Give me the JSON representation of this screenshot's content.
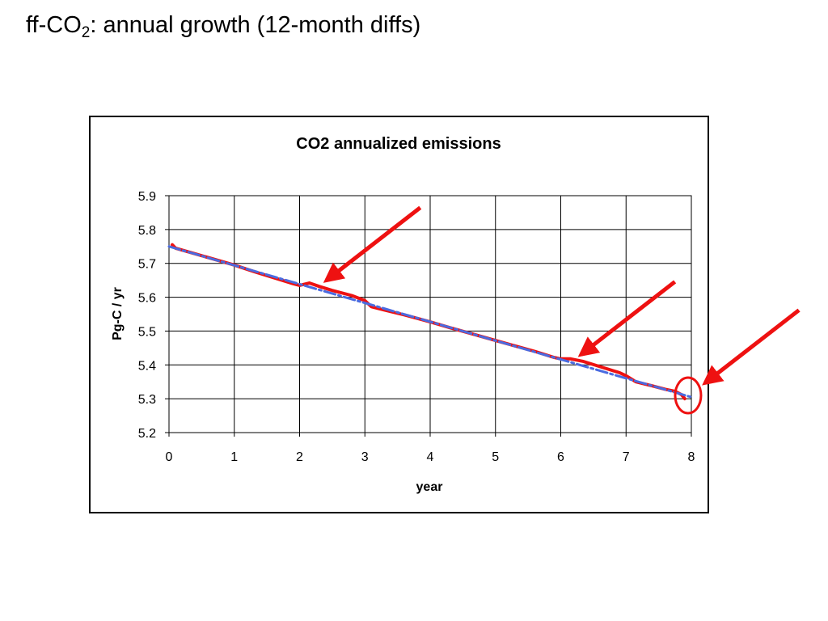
{
  "slide": {
    "title_prefix": "ff-CO",
    "title_subscript": "2",
    "title_suffix": ":  annual growth (12-month diffs)"
  },
  "chart_data": {
    "type": "line",
    "title": "CO2 annualized emissions",
    "xlabel": "year",
    "ylabel": "Pg-C / yr",
    "xlim": [
      0,
      8
    ],
    "ylim": [
      5.2,
      5.9
    ],
    "xticks": [
      "0",
      "1",
      "2",
      "3",
      "4",
      "5",
      "6",
      "7",
      "8"
    ],
    "yticks": [
      "5.9",
      "5.8",
      "5.7",
      "5.6",
      "5.5",
      "5.4",
      "5.3",
      "5.2"
    ],
    "grid": true,
    "legend": "none",
    "series": [
      {
        "color": "#ee1111",
        "style": "solid",
        "x": [
          0.05,
          0.1,
          1.0,
          1.3,
          1.6,
          1.9,
          2.0,
          2.15,
          2.3,
          2.5,
          2.8,
          3.0,
          3.1,
          3.3,
          3.6,
          4.0,
          4.3,
          4.6,
          5.0,
          5.3,
          5.6,
          5.9,
          6.0,
          6.15,
          6.35,
          6.6,
          6.9,
          7.0,
          7.15,
          7.4,
          7.6,
          7.75,
          7.85,
          7.9
        ],
        "y": [
          5.755,
          5.745,
          5.695,
          5.676,
          5.658,
          5.64,
          5.635,
          5.642,
          5.632,
          5.62,
          5.605,
          5.59,
          5.572,
          5.562,
          5.548,
          5.527,
          5.51,
          5.494,
          5.472,
          5.456,
          5.44,
          5.422,
          5.418,
          5.418,
          5.41,
          5.395,
          5.377,
          5.368,
          5.35,
          5.338,
          5.328,
          5.322,
          5.312,
          5.3
        ]
      },
      {
        "color": "#4a6be0",
        "style": "dashed",
        "x": [
          0,
          8
        ],
        "y": [
          5.75,
          5.305
        ]
      }
    ]
  },
  "annotations": {
    "arrow_color": "#ee1111",
    "circle_color": "#ee1111",
    "arrows": [
      {
        "x": 2.3,
        "y": 5.633
      },
      {
        "x": 6.2,
        "y": 5.414
      },
      {
        "x": 8.1,
        "y": 5.33
      }
    ],
    "circle": {
      "x": 7.95,
      "y": 5.305
    }
  }
}
